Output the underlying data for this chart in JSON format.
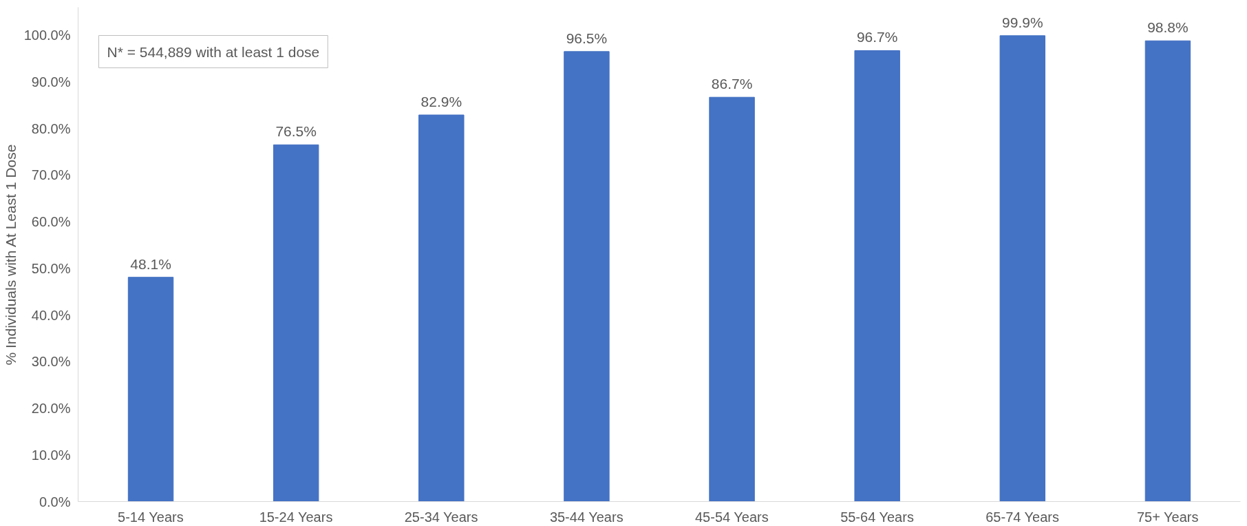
{
  "chart_data": {
    "type": "bar",
    "ylabel": "% Individuals with At Least 1 Dose",
    "categories": [
      "5-14 Years",
      "15-24 Years",
      "25-34 Years",
      "35-44 Years",
      "45-54 Years",
      "55-64 Years",
      "65-74 Years",
      "75+ Years"
    ],
    "values": [
      48.1,
      76.5,
      82.9,
      96.5,
      86.7,
      96.7,
      99.9,
      98.8
    ],
    "value_labels": [
      "48.1%",
      "76.5%",
      "82.9%",
      "96.5%",
      "86.7%",
      "96.7%",
      "99.9%",
      "98.8%"
    ],
    "color": "#4472c4",
    "ylim": [
      0,
      106
    ],
    "yticks": [
      {
        "value": 0,
        "label": "0.0%"
      },
      {
        "value": 10,
        "label": "10.0%"
      },
      {
        "value": 20,
        "label": "20.0%"
      },
      {
        "value": 30,
        "label": "30.0%"
      },
      {
        "value": 40,
        "label": "40.0%"
      },
      {
        "value": 50,
        "label": "50.0%"
      },
      {
        "value": 60,
        "label": "60.0%"
      },
      {
        "value": 70,
        "label": "70.0%"
      },
      {
        "value": 80,
        "label": "80.0%"
      },
      {
        "value": 90,
        "label": "90.0%"
      },
      {
        "value": 100,
        "label": "100.0%"
      }
    ],
    "annotations": [
      "N* = 544,889 with at least 1 dose"
    ],
    "grid": false
  }
}
